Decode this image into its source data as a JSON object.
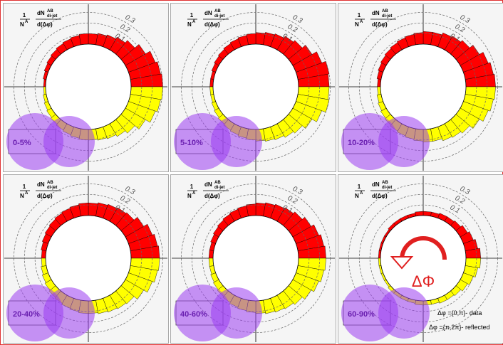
{
  "chart_data": [
    {
      "type": "polar-bar",
      "label": "0-5%",
      "y_label": [
        "1",
        "N",
        "A",
        "dN",
        "AB",
        "di-jet",
        "d(Δφ)"
      ],
      "rlim": [
        0,
        0.35
      ],
      "rticks": [
        0.1,
        0.2,
        0.3
      ],
      "color": "#ff0000",
      "reflected_color": "#ffff00",
      "values": [
        0.3,
        0.29,
        0.27,
        0.22,
        0.17,
        0.14,
        0.12,
        0.11,
        0.1,
        0.1,
        0.09,
        0.08,
        0.07,
        0.06,
        0.05,
        0.04,
        0.03,
        0.02
      ]
    },
    {
      "type": "polar-bar",
      "label": "5-10%",
      "y_label": [
        "1",
        "N",
        "A",
        "dN",
        "AB",
        "di-jet",
        "d(Δφ)"
      ],
      "rlim": [
        0,
        0.35
      ],
      "rticks": [
        0.1,
        0.2,
        0.3
      ],
      "color": "#ff0000",
      "reflected_color": "#ffff00",
      "values": [
        0.29,
        0.3,
        0.26,
        0.21,
        0.17,
        0.15,
        0.13,
        0.12,
        0.11,
        0.1,
        0.09,
        0.08,
        0.07,
        0.06,
        0.05,
        0.04,
        0.03,
        0.03
      ]
    },
    {
      "type": "polar-bar",
      "label": "10-20%",
      "y_label": [
        "1",
        "N",
        "A",
        "dN",
        "AB",
        "di-jet",
        "d(Δφ)"
      ],
      "rlim": [
        0,
        0.35
      ],
      "rticks": [
        0.1,
        0.2,
        0.3
      ],
      "color": "#ff0000",
      "reflected_color": "#ffff00",
      "values": [
        0.28,
        0.27,
        0.25,
        0.21,
        0.17,
        0.15,
        0.14,
        0.12,
        0.12,
        0.11,
        0.1,
        0.09,
        0.08,
        0.07,
        0.06,
        0.05,
        0.04,
        0.03
      ]
    },
    {
      "type": "polar-bar",
      "label": "20-40%",
      "y_label": [
        "1",
        "N",
        "A",
        "dN",
        "AB",
        "di-jet",
        "d(Δφ)"
      ],
      "rlim": [
        0,
        0.35
      ],
      "rticks": [
        0.1,
        0.2,
        0.3
      ],
      "color": "#ff0000",
      "reflected_color": "#ffff00",
      "values": [
        0.27,
        0.26,
        0.24,
        0.2,
        0.16,
        0.15,
        0.14,
        0.13,
        0.12,
        0.12,
        0.11,
        0.1,
        0.09,
        0.08,
        0.07,
        0.06,
        0.05,
        0.04
      ]
    },
    {
      "type": "polar-bar",
      "label": "40-60%",
      "y_label": [
        "1",
        "N",
        "A",
        "dN",
        "AB",
        "di-jet",
        "d(Δφ)"
      ],
      "rlim": [
        0,
        0.35
      ],
      "rticks": [
        0.1,
        0.2,
        0.3
      ],
      "color": "#ff0000",
      "reflected_color": "#ffff00",
      "values": [
        0.26,
        0.25,
        0.23,
        0.2,
        0.17,
        0.15,
        0.14,
        0.13,
        0.12,
        0.11,
        0.1,
        0.09,
        0.08,
        0.07,
        0.06,
        0.05,
        0.04,
        0.04
      ]
    },
    {
      "type": "polar-bar",
      "label": "60-90%",
      "y_label": [
        "1",
        "N",
        "A",
        "dN",
        "AB",
        "di-jet",
        "d(Δφ)"
      ],
      "rlim": [
        0,
        0.35
      ],
      "rticks": [
        0.1,
        0.2,
        0.3
      ],
      "color": "#ff0000",
      "reflected_color": "#ffff00",
      "values": [
        0.14,
        0.12,
        0.1,
        0.08,
        0.06,
        0.05,
        0.05,
        0.04,
        0.04,
        0.04,
        0.03,
        0.03,
        0.03,
        0.03,
        0.02,
        0.02,
        0.02,
        0.02
      ],
      "annotations": [
        "ΔΦ",
        "Δφ ={0,π}- data",
        "Δφ ={π,2π}- reflected"
      ]
    }
  ]
}
